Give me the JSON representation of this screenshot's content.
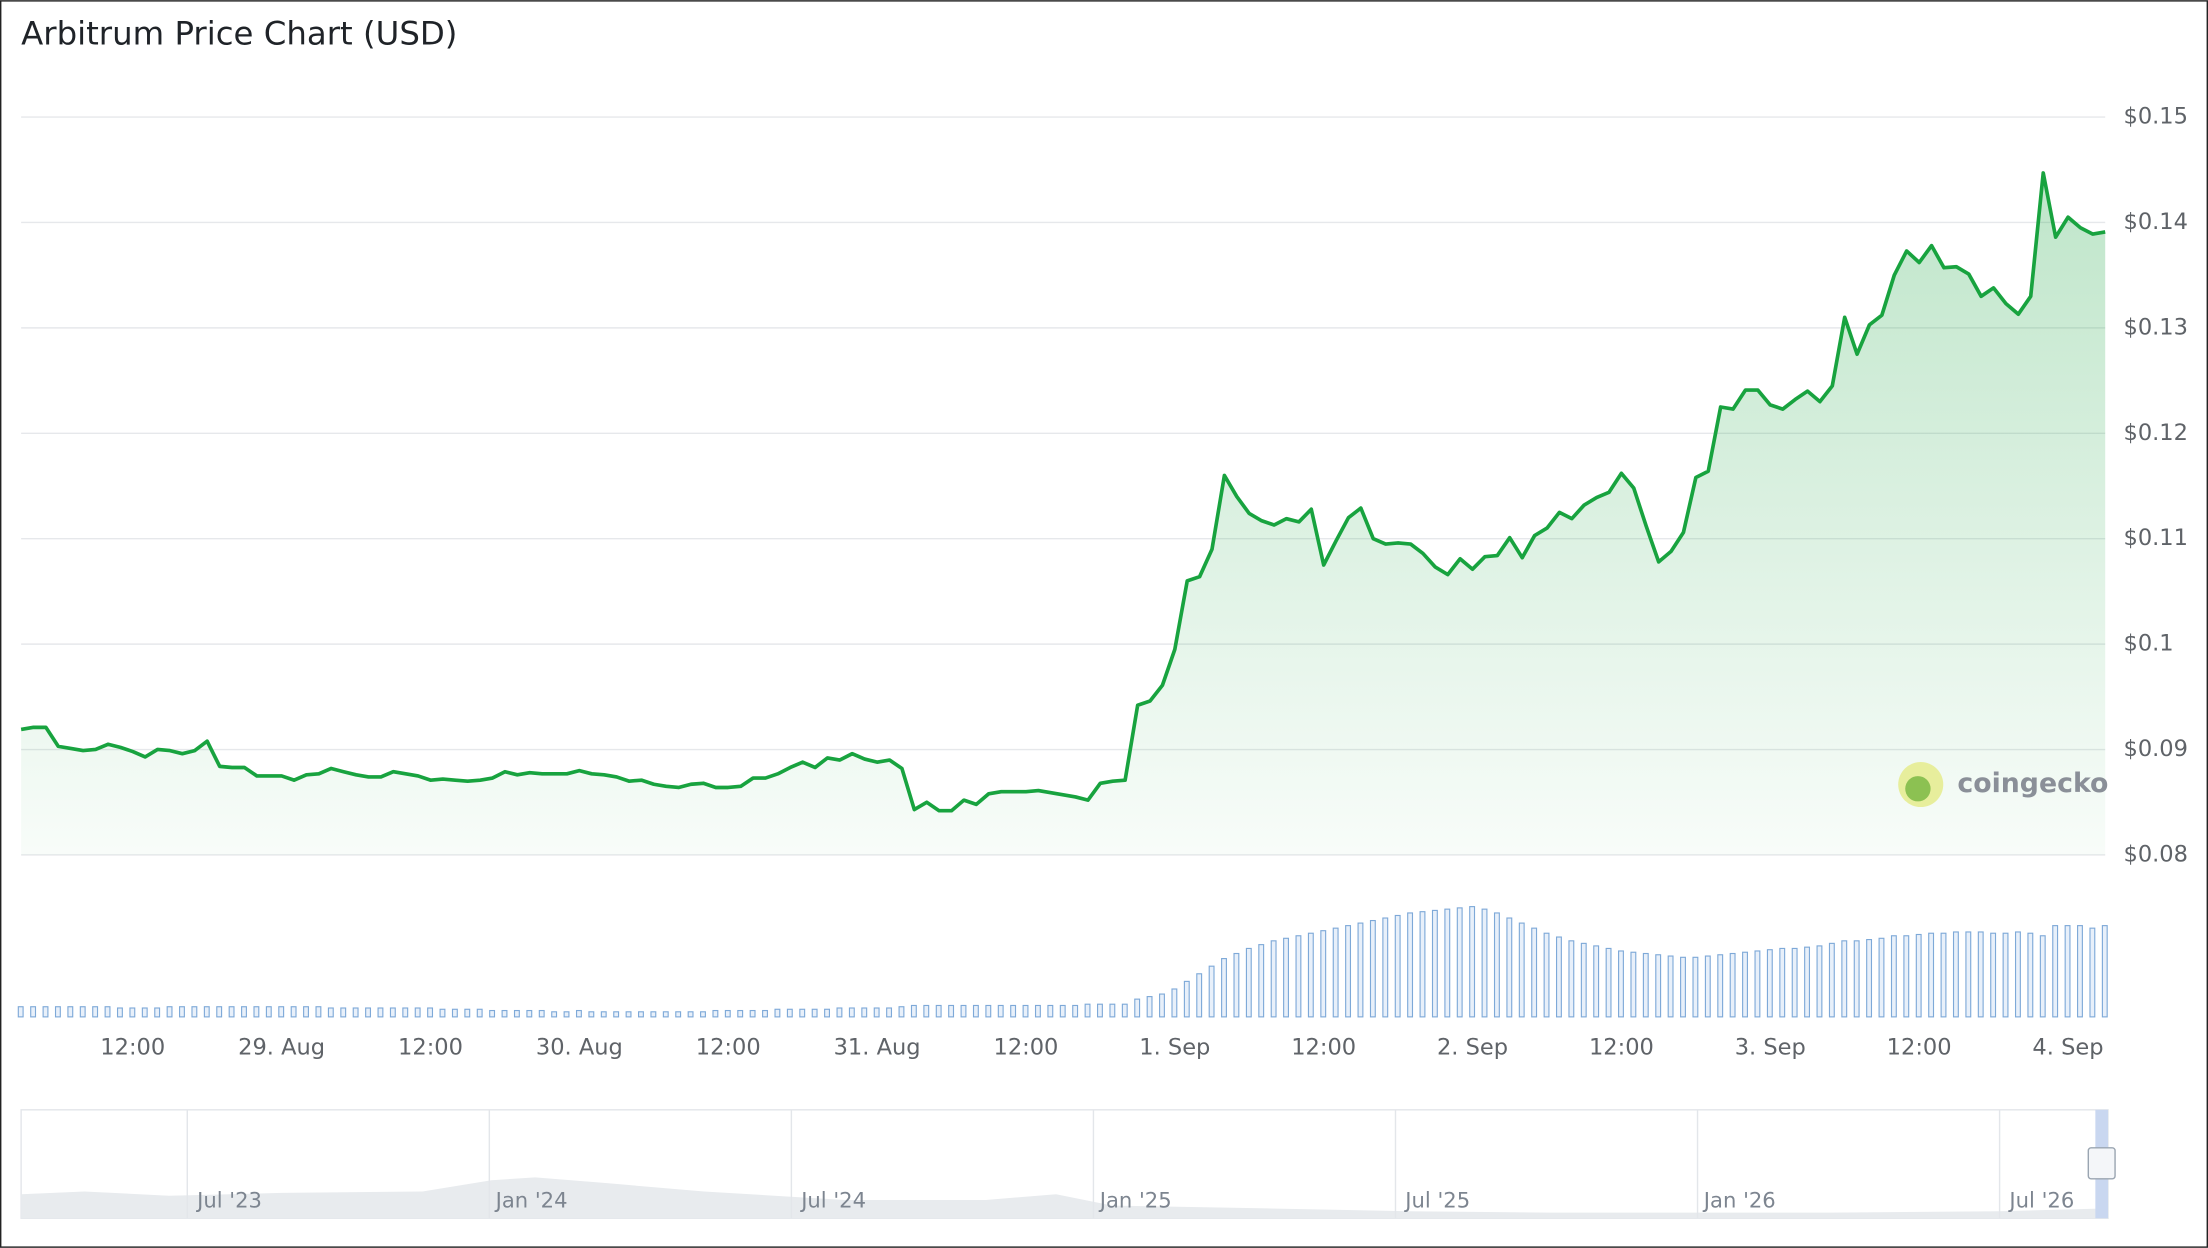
{
  "chart_data": {
    "type": "line",
    "title": "Arbitrum Price Chart (USD)",
    "watermark": "coingecko",
    "categories": [
      null,
      null,
      null,
      null,
      null,
      null,
      null,
      null,
      null,
      "12:00",
      null,
      null,
      null,
      null,
      null,
      null,
      null,
      null,
      null,
      null,
      null,
      "29. Aug",
      null,
      null,
      null,
      null,
      null,
      null,
      null,
      null,
      null,
      null,
      null,
      "12:00",
      null,
      null,
      null,
      null,
      null,
      null,
      null,
      null,
      null,
      null,
      null,
      "30. Aug",
      null,
      null,
      null,
      null,
      null,
      null,
      null,
      null,
      null,
      null,
      null,
      "12:00",
      null,
      null,
      null,
      null,
      null,
      null,
      null,
      null,
      null,
      null,
      null,
      "31. Aug",
      null,
      null,
      null,
      null,
      null,
      null,
      null,
      null,
      null,
      null,
      null,
      "12:00",
      null,
      null,
      null,
      null,
      null,
      null,
      null,
      null,
      null,
      null,
      null,
      "1. Sep",
      null,
      null,
      null,
      null,
      null,
      null,
      null,
      null,
      null,
      null,
      null,
      "12:00",
      null,
      null,
      null,
      null,
      null,
      null,
      null,
      null,
      null,
      null,
      null,
      "2. Sep",
      null,
      null,
      null,
      null,
      null,
      null,
      null,
      null,
      null,
      null,
      null,
      "12:00",
      null,
      null,
      null,
      null,
      null,
      null,
      null,
      null,
      null,
      null,
      null,
      "3. Sep",
      null,
      null,
      null,
      null,
      null,
      null,
      null,
      null,
      null,
      null,
      null,
      "12:00",
      null,
      null,
      null,
      null,
      null,
      null,
      null,
      null,
      null,
      null,
      null,
      "4. Sep",
      null,
      null,
      null
    ],
    "series": [
      {
        "color": "#18a33f",
        "values": [
          0.0919,
          0.0921,
          0.0921,
          0.0903,
          0.0901,
          0.0899,
          0.09,
          0.0905,
          0.0902,
          0.0898,
          0.0893,
          0.09,
          0.0899,
          0.0896,
          0.0899,
          0.0908,
          0.0884,
          0.0883,
          0.0883,
          0.0875,
          0.0875,
          0.0875,
          0.0871,
          0.0876,
          0.0877,
          0.0882,
          0.0879,
          0.0876,
          0.0874,
          0.0874,
          0.0879,
          0.0877,
          0.0875,
          0.0871,
          0.0872,
          0.0871,
          0.087,
          0.0871,
          0.0873,
          0.0879,
          0.0876,
          0.0878,
          0.0877,
          0.0877,
          0.0877,
          0.088,
          0.0877,
          0.0876,
          0.0874,
          0.087,
          0.0871,
          0.0867,
          0.0865,
          0.0864,
          0.0867,
          0.0868,
          0.0864,
          0.0864,
          0.0865,
          0.0873,
          0.0873,
          0.0877,
          0.0883,
          0.0888,
          0.0883,
          0.0892,
          0.089,
          0.0896,
          0.0891,
          0.0888,
          0.089,
          0.0882,
          0.0843,
          0.085,
          0.0842,
          0.0842,
          0.0852,
          0.0848,
          0.0858,
          0.086,
          0.086,
          0.086,
          0.0861,
          0.0859,
          0.0857,
          0.0855,
          0.0852,
          0.0868,
          0.087,
          0.0871,
          0.0942,
          0.0946,
          0.0961,
          0.0995,
          0.106,
          0.1064,
          0.109,
          0.116,
          0.114,
          0.1124,
          0.1117,
          0.1113,
          0.1119,
          0.1116,
          0.1128,
          0.1075,
          0.1098,
          0.112,
          0.1129,
          0.11,
          0.1095,
          0.1096,
          0.1095,
          0.1086,
          0.1073,
          0.1066,
          0.1081,
          0.1071,
          0.1083,
          0.1084,
          0.1101,
          0.1082,
          0.1103,
          0.111,
          0.1125,
          0.1119,
          0.1132,
          0.1139,
          0.1144,
          0.1162,
          0.1148,
          0.1112,
          0.1078,
          0.1088,
          0.1106,
          0.1158,
          0.1164,
          0.1225,
          0.1223,
          0.1241,
          0.1241,
          0.1227,
          0.1223,
          0.1232,
          0.124,
          0.123,
          0.1245,
          0.131,
          0.1275,
          0.1303,
          0.1312,
          0.135,
          0.1373,
          0.1362,
          0.1378,
          0.1357,
          0.1358,
          0.1351,
          0.133,
          0.1338,
          0.1323,
          0.1313,
          0.133,
          0.1447,
          0.1386,
          0.1405,
          0.1395,
          0.1389,
          0.1391
        ]
      }
    ],
    "volume": {
      "color": "#7ea9d8",
      "values": [
        8,
        8,
        8,
        8,
        8,
        8,
        8,
        8,
        7,
        7,
        7,
        7,
        8,
        8,
        8,
        8,
        8,
        8,
        8,
        8,
        8,
        8,
        8,
        8,
        8,
        7,
        7,
        7,
        7,
        7,
        7,
        7,
        7,
        7,
        6,
        6,
        6,
        6,
        5,
        5,
        5,
        5,
        5,
        4,
        4,
        5,
        4,
        4,
        4,
        4,
        4,
        4,
        4,
        4,
        4,
        4,
        5,
        5,
        5,
        5,
        5,
        6,
        6,
        6,
        6,
        6,
        7,
        7,
        7,
        7,
        7,
        8,
        9,
        9,
        9,
        9,
        9,
        9,
        9,
        9,
        9,
        9,
        9,
        9,
        9,
        9,
        10,
        10,
        10,
        10,
        14,
        16,
        18,
        22,
        28,
        34,
        40,
        46,
        50,
        54,
        57,
        60,
        62,
        64,
        66,
        68,
        70,
        72,
        74,
        76,
        78,
        80,
        82,
        83,
        84,
        85,
        86,
        87,
        85,
        82,
        78,
        74,
        70,
        66,
        63,
        60,
        58,
        56,
        54,
        52,
        51,
        50,
        49,
        48,
        47,
        47,
        48,
        49,
        50,
        51,
        52,
        53,
        54,
        54,
        55,
        56,
        58,
        60,
        60,
        61,
        62,
        64,
        64,
        65,
        66,
        66,
        67,
        67,
        67,
        66,
        66,
        67,
        66,
        64,
        72,
        72,
        72,
        70,
        72
      ]
    },
    "ylim": [
      0.08,
      0.15
    ],
    "yticks": [
      {
        "value": 0.08,
        "label": "$0.08"
      },
      {
        "value": 0.09,
        "label": "$0.09"
      },
      {
        "value": 0.1,
        "label": "$0.1"
      },
      {
        "value": 0.11,
        "label": "$0.11"
      },
      {
        "value": 0.12,
        "label": "$0.12"
      },
      {
        "value": 0.13,
        "label": "$0.13"
      },
      {
        "value": 0.14,
        "label": "$0.14"
      },
      {
        "value": 0.15,
        "label": "$0.15"
      }
    ],
    "grid": true,
    "navigator": {
      "labels": [
        "Jul '23",
        "Jan '24",
        "Jul '24",
        "Jan '25",
        "Jul '25",
        "Jan '26",
        "Jul '26"
      ]
    }
  }
}
